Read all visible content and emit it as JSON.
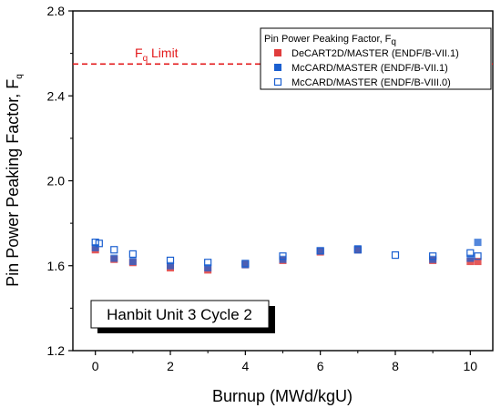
{
  "chart_data": {
    "type": "scatter",
    "xlabel": "Burnup (MWd/kgU)",
    "ylabel": {
      "main": "Pin Power Peaking Factor, F",
      "sub": "q"
    },
    "xlim": [
      -0.6,
      10.6
    ],
    "ylim": [
      1.2,
      2.8
    ],
    "x_ticks": [
      0,
      2,
      4,
      6,
      8,
      10
    ],
    "x_tick_labels": [
      "0",
      "2",
      "4",
      "6",
      "8",
      "10"
    ],
    "y_ticks": [
      1.2,
      1.6,
      2.0,
      2.4,
      2.8
    ],
    "y_tick_labels": [
      "1.2",
      "1.6",
      "2.0",
      "2.4",
      "2.8"
    ],
    "grid": false,
    "legend_placement": "top-right",
    "legend_title": {
      "main": "Pin Power Peaking Factor, F",
      "sub": "q"
    },
    "limit_line": {
      "y": 2.55,
      "label_main": "F",
      "label_sub": "q",
      "label_rest": " Limit",
      "color": "#e31a1c"
    },
    "annotation": "Hanbit Unit 3 Cycle 2",
    "series": [
      {
        "name": "DeCART2D/MASTER (ENDF/B-VII.1)",
        "marker": "filled-square",
        "color": "#e03c3c",
        "x": [
          0,
          0.5,
          1,
          2,
          3,
          4,
          5,
          6,
          7,
          9,
          10,
          10.2
        ],
        "y": [
          1.675,
          1.63,
          1.615,
          1.59,
          1.58,
          1.605,
          1.625,
          1.665,
          1.675,
          1.625,
          1.62,
          1.62
        ]
      },
      {
        "name": "McCARD/MASTER (ENDF/B-VII.1)",
        "marker": "filled-square",
        "color": "#1a5fd0",
        "x": [
          0,
          0.5,
          1,
          2,
          3,
          4,
          5,
          6,
          7,
          9,
          10,
          10.2
        ],
        "y": [
          1.685,
          1.635,
          1.62,
          1.6,
          1.59,
          1.605,
          1.63,
          1.67,
          1.68,
          1.63,
          1.635,
          1.71
        ]
      },
      {
        "name": "McCARD/MASTER (ENDF/B-VIII.0)",
        "marker": "open-square",
        "color": "#1a5fd0",
        "x": [
          0,
          0.1,
          0.5,
          1,
          2,
          3,
          4,
          5,
          6,
          7,
          8,
          9,
          10,
          10.2
        ],
        "y": [
          1.71,
          1.705,
          1.675,
          1.655,
          1.625,
          1.615,
          1.61,
          1.645,
          1.67,
          1.675,
          1.65,
          1.645,
          1.66,
          1.645
        ]
      }
    ]
  }
}
